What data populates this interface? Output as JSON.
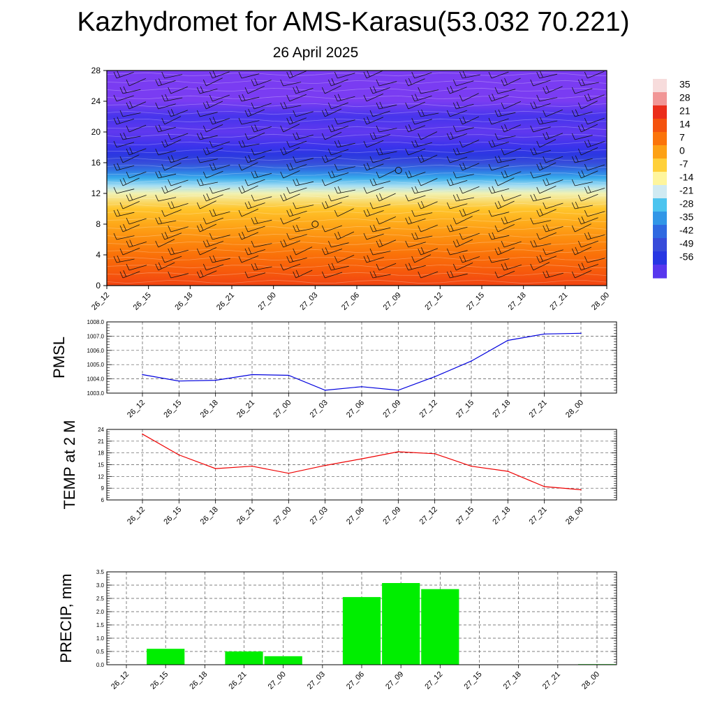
{
  "header": {
    "title": "Kazhydromet for AMS-Karasu(53.032 70.221)",
    "subtitle": "26 April 2025"
  },
  "colors": {
    "pmsl_line": "#0000dd",
    "temp_line": "#ee0000",
    "precip_bar": "#00ee00",
    "grid": "#555555"
  },
  "chart_data": [
    {
      "type": "heatmap",
      "name": "vertical-profile",
      "x": [
        "26_12",
        "26_15",
        "26_18",
        "26_21",
        "27_00",
        "27_03",
        "27_06",
        "27_09",
        "27_12",
        "27_15",
        "27_18",
        "27_21",
        "28_00"
      ],
      "ylim": [
        0,
        28
      ],
      "yticks": [
        0,
        4,
        8,
        12,
        16,
        20,
        24,
        28
      ],
      "colorbar_labels": [
        "35",
        "28",
        "21",
        "14",
        "7",
        "0",
        "-7",
        "-14",
        "-21",
        "-28",
        "-35",
        "-42",
        "-49",
        "-56"
      ],
      "color_scale": [
        {
          "v": 35,
          "c": "#f7dcdc"
        },
        {
          "v": 28,
          "c": "#e82020"
        },
        {
          "v": 21,
          "c": "#f24a10"
        },
        {
          "v": 14,
          "c": "#fa6a08"
        },
        {
          "v": 7,
          "c": "#fd9a10"
        },
        {
          "v": 0,
          "c": "#ffcc30"
        },
        {
          "v": -7,
          "c": "#fff59a"
        },
        {
          "v": -14,
          "c": "#cfeaf5"
        },
        {
          "v": -21,
          "c": "#40c0ee"
        },
        {
          "v": -28,
          "c": "#2e8fe6"
        },
        {
          "v": -35,
          "c": "#2f5fe0"
        },
        {
          "v": -42,
          "c": "#3a44d8"
        },
        {
          "v": -49,
          "c": "#1f2fe8"
        },
        {
          "v": -56,
          "c": "#7a3cf2"
        }
      ],
      "temperature_profile": [
        {
          "y": 0,
          "t": 22
        },
        {
          "y": 2,
          "t": 17
        },
        {
          "y": 4,
          "t": 13
        },
        {
          "y": 6,
          "t": 9
        },
        {
          "y": 8,
          "t": 5
        },
        {
          "y": 10,
          "t": 1
        },
        {
          "y": 12,
          "t": -9
        },
        {
          "y": 13,
          "t": -16
        },
        {
          "y": 14,
          "t": -24
        },
        {
          "y": 15,
          "t": -32
        },
        {
          "y": 16,
          "t": -40
        },
        {
          "y": 17,
          "t": -46
        },
        {
          "y": 18,
          "t": -51
        },
        {
          "y": 20,
          "t": -54
        },
        {
          "y": 22,
          "t": -52
        },
        {
          "y": 24,
          "t": -58
        },
        {
          "y": 26,
          "t": -60
        },
        {
          "y": 28,
          "t": -61
        }
      ],
      "calm_markers": [
        {
          "x": "27_03",
          "y": 8
        },
        {
          "x": "27_09",
          "y": 15
        }
      ]
    },
    {
      "type": "line",
      "name": "pmsl",
      "ylabel": "PMSL",
      "categories": [
        "26_12",
        "26_15",
        "26_18",
        "26_21",
        "27_00",
        "27_03",
        "27_06",
        "27_09",
        "27_12",
        "27_15",
        "27_18",
        "27_21",
        "28_00"
      ],
      "values": [
        1004.3,
        1003.85,
        1003.9,
        1004.3,
        1004.25,
        1003.2,
        1003.45,
        1003.2,
        1004.15,
        1005.25,
        1006.7,
        1007.15,
        1007.2
      ],
      "ylim": [
        1003.0,
        1008.0
      ],
      "yticks": [
        "1003.0",
        "1004.0",
        "1005.0",
        "1006.0",
        "1007.0",
        "1008.0"
      ],
      "grid": true
    },
    {
      "type": "line",
      "name": "temp2m",
      "ylabel": "TEMP at 2 M",
      "categories": [
        "26_12",
        "26_15",
        "26_18",
        "26_21",
        "27_00",
        "27_03",
        "27_06",
        "27_09",
        "27_12",
        "27_15",
        "27_18",
        "27_21",
        "28_00"
      ],
      "values": [
        22.8,
        17.5,
        14.0,
        14.6,
        12.8,
        14.8,
        16.5,
        18.3,
        17.8,
        14.6,
        13.3,
        9.4,
        8.6
      ],
      "ylim": [
        6,
        24
      ],
      "yticks": [
        "6",
        "9",
        "12",
        "15",
        "18",
        "21",
        "24"
      ],
      "grid": true
    },
    {
      "type": "bar",
      "name": "precip",
      "ylabel": "PRECIP, mm",
      "categories": [
        "26_12",
        "26_15",
        "26_18",
        "26_21",
        "27_00",
        "27_03",
        "27_06",
        "27_09",
        "27_12",
        "27_15",
        "27_18",
        "27_21",
        "28_00"
      ],
      "values": [
        0,
        0.6,
        0,
        0.5,
        0.32,
        0,
        2.55,
        3.08,
        2.85,
        0,
        0,
        0,
        0.02
      ],
      "ylim": [
        0,
        3.5
      ],
      "yticks": [
        "0.0",
        "0.5",
        "1.0",
        "1.5",
        "2.0",
        "2.5",
        "3.0",
        "3.5"
      ],
      "grid": true
    }
  ]
}
